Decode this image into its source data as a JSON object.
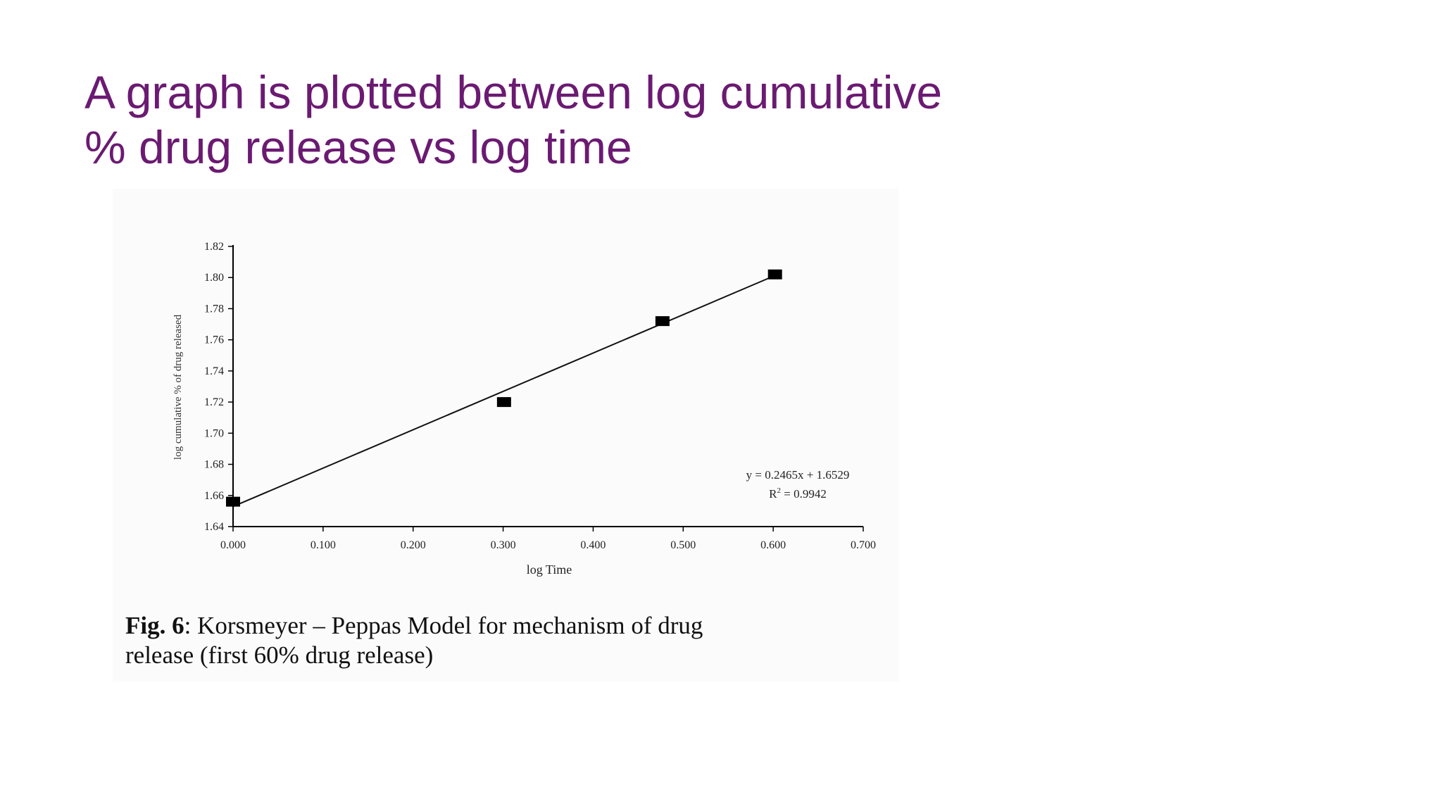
{
  "slide": {
    "title_line1": "A graph is plotted between log cumulative",
    "title_line2": "% drug release vs log time",
    "title_color": "#6b1a72"
  },
  "caption": {
    "label": "Fig. 6",
    "line1_rest": ":  Korsmeyer – Peppas Model for mechanism of drug",
    "line2": "release (first 60% drug release)"
  },
  "chart_data": {
    "type": "scatter",
    "xlabel": "log Time",
    "ylabel": "log cumulative % of drug released",
    "xlim": [
      0.0,
      0.7
    ],
    "ylim": [
      1.64,
      1.82
    ],
    "x_ticks": [
      "0.000",
      "0.100",
      "0.200",
      "0.300",
      "0.400",
      "0.500",
      "0.600",
      "0.700"
    ],
    "y_ticks": [
      "1.64",
      "1.66",
      "1.68",
      "1.70",
      "1.72",
      "1.74",
      "1.76",
      "1.78",
      "1.80",
      "1.82"
    ],
    "series": [
      {
        "x": [
          0.0,
          0.301,
          0.477,
          0.602
        ],
        "y": [
          1.656,
          1.72,
          1.772,
          1.802
        ],
        "marker": "square",
        "color": "#000000"
      }
    ],
    "trendline": {
      "slope": 0.2465,
      "intercept": 1.6529,
      "x_range": [
        0.0,
        0.602
      ],
      "equation": "y = 0.2465x + 1.6529",
      "r2_prefix": "R",
      "r2_sup": "2",
      "r2_rest": " = 0.9942"
    },
    "grid": false,
    "legend": "none"
  }
}
